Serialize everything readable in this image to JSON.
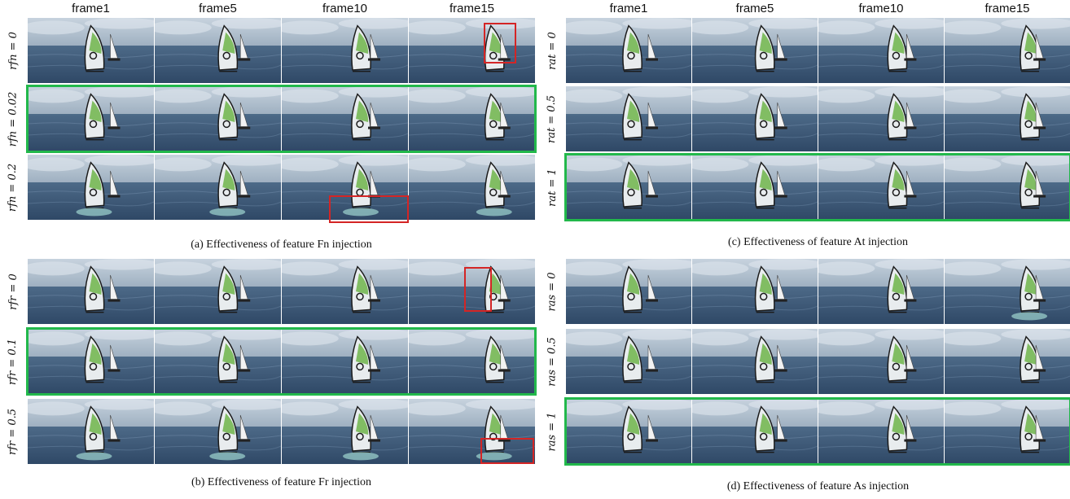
{
  "headers": [
    "frame1",
    "frame5",
    "frame10",
    "frame15"
  ],
  "panels": [
    {
      "id": "a",
      "caption": "(a) Effectiveness of feature Fn injection",
      "rows": [
        "rfn = 0",
        "rfn = 0.02",
        "rfn = 0.2"
      ]
    },
    {
      "id": "b",
      "caption": "(b) Effectiveness of feature Fr injection",
      "rows": [
        "rfr = 0",
        "rfr = 0.1",
        "rfr = 0.5"
      ]
    },
    {
      "id": "c",
      "caption": "(c) Effectiveness of feature At injection",
      "rows": [
        "rat = 0",
        "rat = 0.5",
        "rat = 1"
      ]
    },
    {
      "id": "d",
      "caption": "(d) Effectiveness of feature As injection",
      "rows": [
        "ras = 0",
        "ras = 0.5",
        "ras = 1"
      ]
    }
  ],
  "colors": {
    "highlight_green": "#22b84b",
    "highlight_red": "#d42525",
    "sky": "#aebccb",
    "sea": "#3e5a78"
  }
}
